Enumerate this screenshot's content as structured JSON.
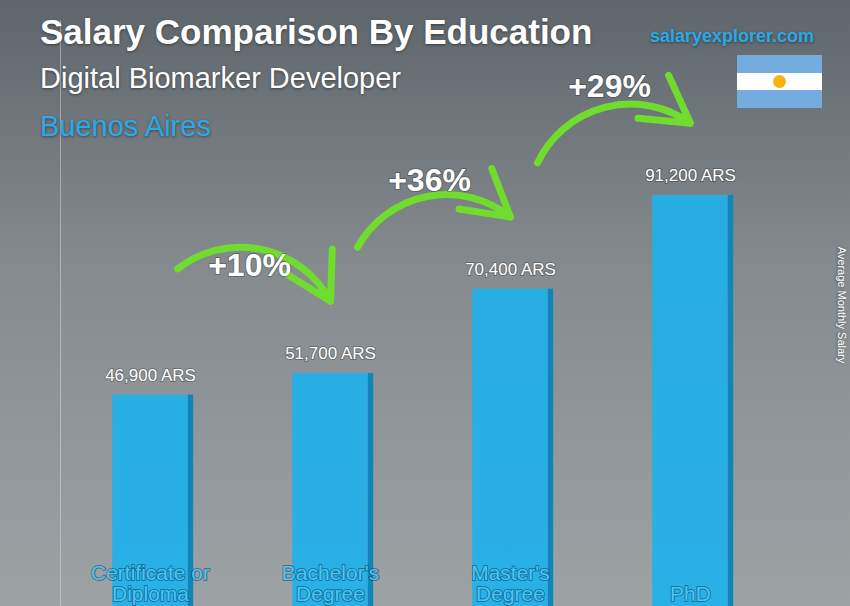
{
  "chart_data": {
    "type": "bar",
    "title": "Salary Comparison By Education",
    "subtitle": "Digital Biomarker Developer",
    "location": "Buenos Aires",
    "source": "salaryexplorer.com",
    "ylabel": "Average Monthly Salary",
    "categories": [
      "Certificate or Diploma",
      "Bachelor's Degree",
      "Master's Degree",
      "PhD"
    ],
    "values": [
      46900,
      51700,
      70400,
      91200
    ],
    "value_labels": [
      "46,900 ARS",
      "51,700 ARS",
      "70,400 ARS",
      "91,200 ARS"
    ],
    "annotations": [
      "+10%",
      "+36%",
      "+29%"
    ],
    "color": "#1fb1ea",
    "ylim": [
      0,
      130000
    ],
    "yticks": [],
    "grid": false,
    "data_labels": true,
    "tick_labels": false
  }
}
